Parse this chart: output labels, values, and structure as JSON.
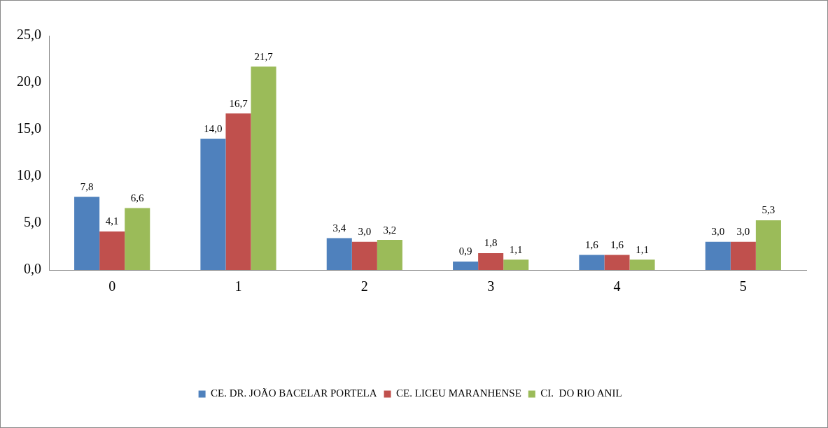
{
  "chart_data": {
    "type": "bar",
    "categories": [
      "0",
      "1",
      "2",
      "3",
      "4",
      "5"
    ],
    "series": [
      {
        "name": "CE. DR. JOÃO BACELAR PORTELA",
        "color": "#4f81bd",
        "values": [
          7.8,
          14.0,
          3.4,
          0.9,
          1.6,
          3.0
        ],
        "value_labels": [
          "7,8",
          "14,0",
          "3,4",
          "0,9",
          "1,6",
          "3,0"
        ]
      },
      {
        "name": "CE. LICEU MARANHENSE",
        "color": "#c0504d",
        "values": [
          4.1,
          16.7,
          3.0,
          1.8,
          1.6,
          3.0
        ],
        "value_labels": [
          "4,1",
          "16,7",
          "3,0",
          "1,8",
          "1,6",
          "3,0"
        ]
      },
      {
        "name": "CI.  DO RIO ANIL",
        "color": "#9bbb59",
        "values": [
          6.6,
          21.7,
          3.2,
          1.1,
          1.1,
          5.3
        ],
        "value_labels": [
          "6,6",
          "21,7",
          "3,2",
          "1,1",
          "1,1",
          "5,3"
        ]
      }
    ],
    "ylim": [
      0,
      25
    ],
    "yticks": [
      {
        "value": 0,
        "label": "0,0"
      },
      {
        "value": 5,
        "label": "5,0"
      },
      {
        "value": 10,
        "label": "10,0"
      },
      {
        "value": 15,
        "label": "15,0"
      },
      {
        "value": 20,
        "label": "20,0"
      },
      {
        "value": 25,
        "label": "25,0"
      }
    ],
    "grid": false,
    "legend": "bottom"
  }
}
